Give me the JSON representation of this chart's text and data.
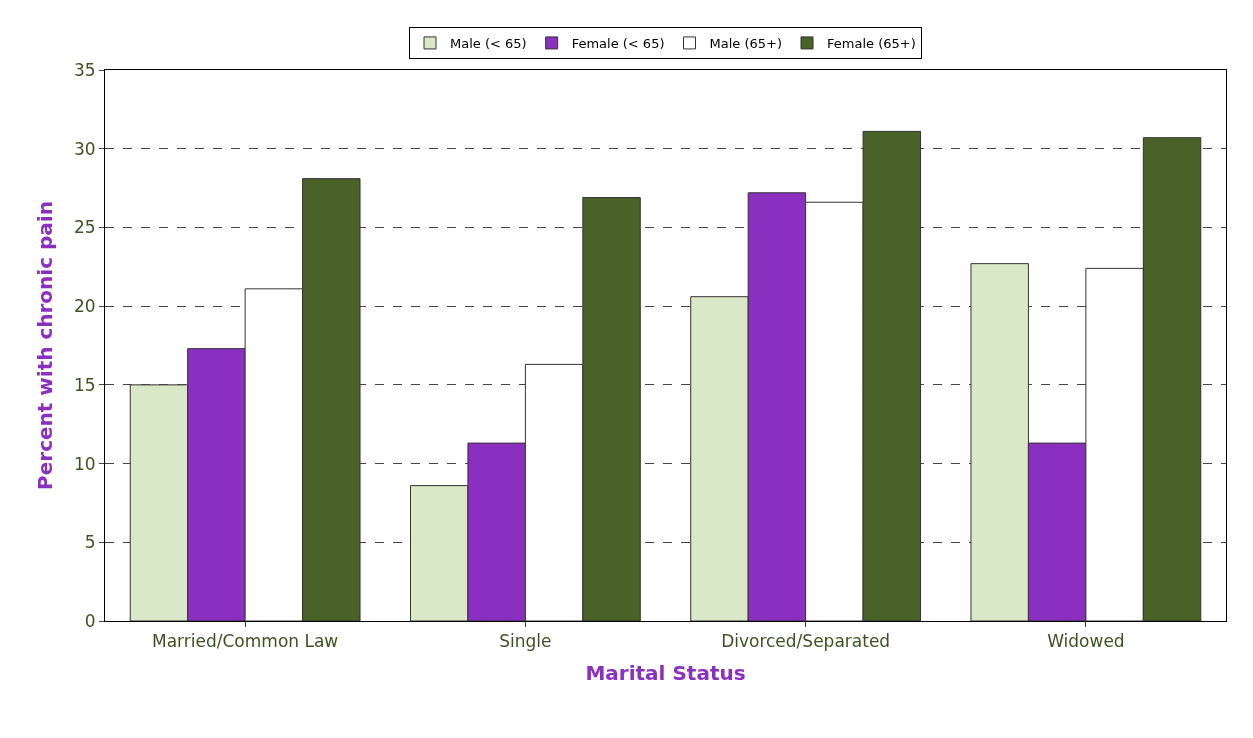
{
  "chart_data": {
    "type": "bar",
    "xlabel": "Marital Status",
    "ylabel": "Percent with chronic pain",
    "categories": [
      "Married/Common Law",
      "Single",
      "Divorced/Separated",
      "Widowed"
    ],
    "series": [
      {
        "name": "Male (< 65)",
        "color": "#d9e8c6",
        "values": [
          15.0,
          8.6,
          20.6,
          22.7
        ]
      },
      {
        "name": "Female (< 65)",
        "color": "#8b2fc0",
        "values": [
          17.3,
          11.3,
          27.2,
          11.3
        ]
      },
      {
        "name": "Male (65+)",
        "color": "#ffffff",
        "values": [
          21.1,
          16.3,
          26.6,
          22.4
        ]
      },
      {
        "name": "Female (65+)",
        "color": "#4a6127",
        "values": [
          28.1,
          26.9,
          31.1,
          30.7
        ]
      }
    ],
    "ylim": [
      0,
      35
    ],
    "yticks": [
      0,
      5,
      10,
      15,
      20,
      25,
      30,
      35
    ],
    "grid": "y",
    "legend": "top"
  }
}
